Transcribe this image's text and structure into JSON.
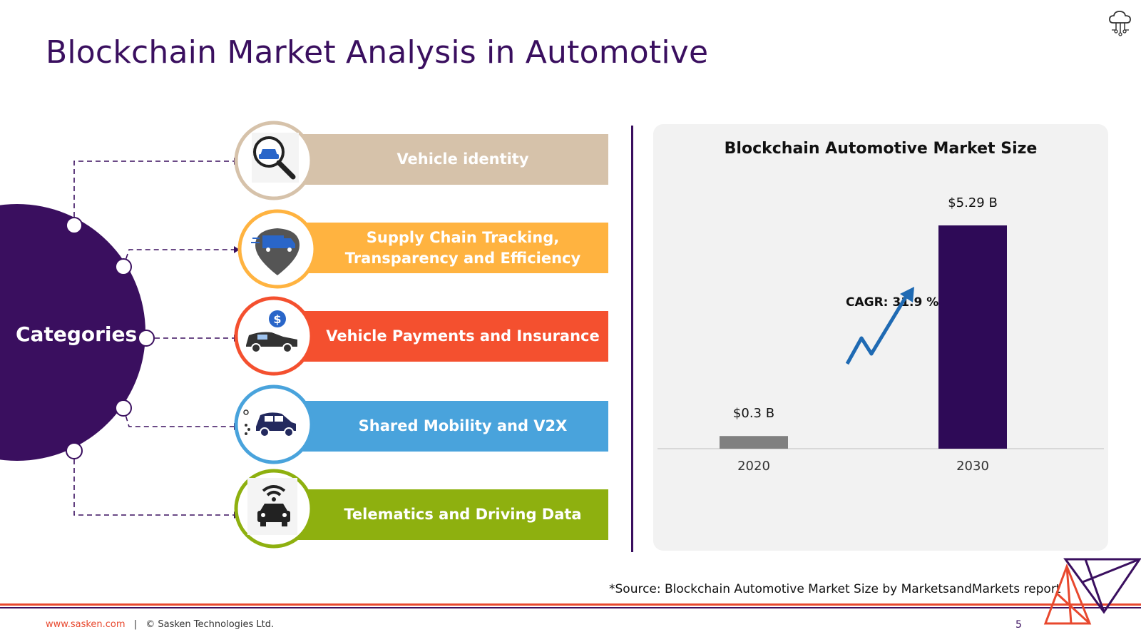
{
  "title": "Blockchain Market Analysis in Automotive",
  "diagram": {
    "center_label": "Categories",
    "items": [
      {
        "label_lines": [
          "Vehicle identity"
        ],
        "color": "#d6c2aa",
        "icon": "search-car-icon"
      },
      {
        "label_lines": [
          "Supply Chain Tracking,",
          "Transparency and Efficiency"
        ],
        "color": "#ffb340",
        "icon": "delivery-truck-pin-icon"
      },
      {
        "label_lines": [
          "Vehicle Payments and Insurance"
        ],
        "color": "#f4502f",
        "icon": "car-payment-icon"
      },
      {
        "label_lines": [
          "Shared Mobility and V2X"
        ],
        "color": "#49a3dc",
        "icon": "shared-car-icon"
      },
      {
        "label_lines": [
          "Telematics and Driving Data"
        ],
        "color": "#8eb00f",
        "icon": "connected-car-icon"
      }
    ]
  },
  "chart_data": {
    "type": "bar",
    "title": "Blockchain Automotive Market Size",
    "categories": [
      "2020",
      "2030"
    ],
    "values": [
      0.3,
      5.29
    ],
    "value_labels": [
      "$0.3 B",
      "$5.29 B"
    ],
    "bar_colors": [
      "#808080",
      "#2e0a57"
    ],
    "annotation": "CAGR: 31.9 %",
    "grid": false
  },
  "footer": {
    "source": "*Source: Blockchain  Automotive Market Size by MarketsandMarkets report",
    "url": "www.sasken.com",
    "separator": "|",
    "copyright": "© Sasken Technologies Ltd.",
    "page_number": "5"
  },
  "colors": {
    "primary": "#3a0f5f",
    "accent": "#e8482e"
  }
}
